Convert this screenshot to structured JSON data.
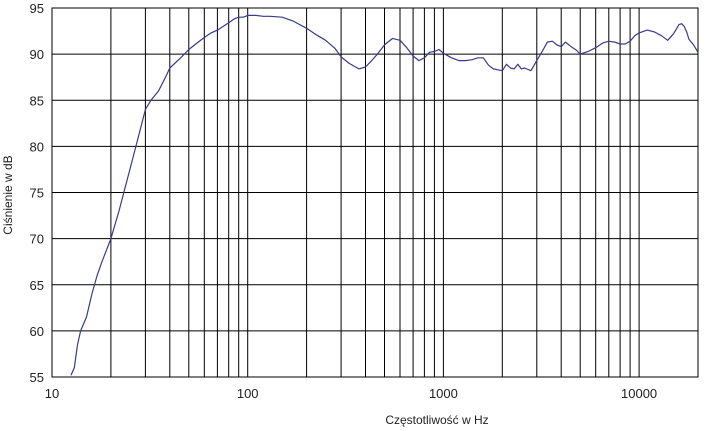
{
  "chart_data": {
    "type": "line",
    "xlabel": "Częstotliwość w Hz",
    "ylabel": "Ciśnienie w dB",
    "xscale": "log",
    "xlim": [
      10,
      20000
    ],
    "ylim": [
      55,
      95
    ],
    "grid": true,
    "line_color": "#3a3a8c",
    "x_tick_labels": [
      "10",
      "100",
      "1000",
      "10000"
    ],
    "y_tick_labels": [
      "55",
      "60",
      "65",
      "70",
      "75",
      "80",
      "85",
      "90",
      "95"
    ],
    "series": [
      {
        "x": [
          12.5,
          13,
          13.5,
          14,
          15,
          16,
          17,
          18,
          20,
          22,
          25,
          28,
          30,
          32,
          35,
          38,
          40,
          45,
          50,
          55,
          60,
          65,
          70,
          75,
          80,
          85,
          90,
          95,
          100,
          110,
          120,
          130,
          150,
          170,
          200,
          220,
          250,
          280,
          300,
          330,
          370,
          400,
          430,
          460,
          500,
          550,
          600,
          650,
          700,
          750,
          800,
          850,
          900,
          950,
          1000,
          1100,
          1200,
          1300,
          1400,
          1500,
          1600,
          1700,
          1800,
          2000,
          2100,
          2200,
          2300,
          2400,
          2500,
          2600,
          2800,
          3000,
          3200,
          3400,
          3600,
          3800,
          4000,
          4200,
          4500,
          4800,
          5000,
          5500,
          6000,
          6500,
          7000,
          7500,
          8000,
          8500,
          9000,
          9500,
          10000,
          11000,
          12000,
          13000,
          14000,
          15000,
          16000,
          16500,
          17000,
          17500,
          18000,
          19000,
          20000
        ],
        "y": [
          55.2,
          56,
          58.5,
          60,
          61.5,
          64,
          66,
          67.5,
          70,
          73,
          77.5,
          81.5,
          84,
          85,
          86,
          87.5,
          88.5,
          89.5,
          90.5,
          91.2,
          91.8,
          92.3,
          92.6,
          93,
          93.4,
          93.8,
          94,
          94,
          94.2,
          94.2,
          94.1,
          94.1,
          94,
          93.6,
          92.8,
          92.2,
          91.5,
          90.6,
          89.7,
          89,
          88.4,
          88.6,
          89.3,
          90,
          91,
          91.7,
          91.5,
          90.7,
          89.8,
          89.3,
          89.6,
          90.2,
          90.3,
          90.5,
          90.1,
          89.6,
          89.3,
          89.3,
          89.4,
          89.6,
          89.6,
          88.8,
          88.4,
          88.2,
          88.9,
          88.5,
          88.4,
          88.9,
          88.4,
          88.5,
          88.2,
          89.3,
          90.3,
          91.3,
          91.4,
          91,
          90.8,
          91.3,
          90.8,
          90.4,
          90,
          90.3,
          90.7,
          91.2,
          91.4,
          91.3,
          91.1,
          91.1,
          91.4,
          92,
          92.3,
          92.6,
          92.4,
          92,
          91.5,
          92.2,
          93.2,
          93.3,
          93,
          92.4,
          91.6,
          91,
          90.2
        ]
      }
    ]
  }
}
